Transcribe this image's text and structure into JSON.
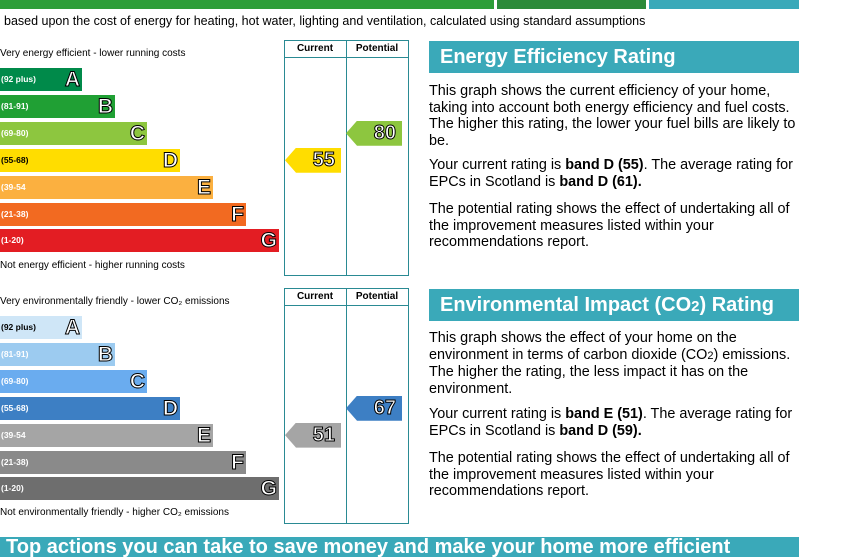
{
  "subtitle": "based upon the cost of energy for heating, hot water, lighting and ventilation, calculated using standard assumptions",
  "top_bar_colors": [
    "#2e9e39",
    "#2c8a3a",
    "#3aa9b9"
  ],
  "energy": {
    "top_note": "Very energy efficient - lower running costs",
    "bottom_note": "Not energy efficient - higher running costs",
    "col_current": "Current",
    "col_potential": "Potential",
    "bands": [
      {
        "range": "(92 plus)",
        "letter": "A",
        "color": "#008a4a"
      },
      {
        "range": "(81-91)",
        "letter": "B",
        "color": "#20a034"
      },
      {
        "range": "(69-80)",
        "letter": "C",
        "color": "#8dc63f"
      },
      {
        "range": "(55-68)",
        "letter": "D",
        "color": "#ffdd00"
      },
      {
        "range": "(39-54",
        "letter": "E",
        "color": "#fbb040"
      },
      {
        "range": "(21-38)",
        "letter": "F",
        "color": "#f26a21"
      },
      {
        "range": "(1-20)",
        "letter": "G",
        "color": "#e31d23"
      }
    ],
    "current": {
      "value": "55",
      "band": "D",
      "color": "#ffdd00"
    },
    "potential": {
      "value": "80",
      "band": "C",
      "color": "#8dc63f"
    }
  },
  "environment": {
    "top_note": "Very environmentally friendly - lower CO₂ emissions",
    "bottom_note": "Not environmentally friendly - higher CO₂ emissions",
    "col_current": "Current",
    "col_potential": "Potential",
    "bands": [
      {
        "range": "(92 plus)",
        "letter": "A",
        "color": "#cfe6f7"
      },
      {
        "range": "(81-91)",
        "letter": "B",
        "color": "#9ccbf0"
      },
      {
        "range": "(69-80)",
        "letter": "C",
        "color": "#6aacef"
      },
      {
        "range": "(55-68)",
        "letter": "D",
        "color": "#3d7fc4"
      },
      {
        "range": "(39-54",
        "letter": "E",
        "color": "#a5a5a5"
      },
      {
        "range": "(21-38)",
        "letter": "F",
        "color": "#8a8a8a"
      },
      {
        "range": "(1-20)",
        "letter": "G",
        "color": "#6e6e6e"
      }
    ],
    "current": {
      "value": "51",
      "band": "E",
      "color": "#a5a5a5"
    },
    "potential": {
      "value": "67",
      "band": "D",
      "color": "#3d7fc4"
    }
  },
  "eer_panel": {
    "heading": "Energy Efficiency Rating",
    "p1": "This graph shows the current efficiency of your home, taking into account both energy efficiency and fuel costs. The higher this rating, the lower your fuel bills are likely to be.",
    "p2_pre": "Your current rating is ",
    "p2_b1": "band D (55)",
    "p2_mid": ". The average rating for EPCs in Scotland is ",
    "p2_b2": "band D (61).",
    "p3": "The potential rating shows the effect of undertaking all of the improvement measures listed within your recommendations report."
  },
  "eir_panel": {
    "heading_pre": "Environmental Impact (CO",
    "heading_sub": "2",
    "heading_post": ") Rating",
    "p1_pre": "This graph shows the effect of your home on the environment in terms of carbon dioxide (CO",
    "p1_sub": "2",
    "p1_post": ") emissions. The higher the rating, the less impact it has on the environment.",
    "p2_pre": "Your current rating is ",
    "p2_b1": "band E (51)",
    "p2_mid": ". The average rating for EPCs in Scotland is ",
    "p2_b2": "band D (59).",
    "p3": "The potential rating shows the effect of undertaking all of the improvement measures listed within your recommendations report."
  },
  "bottom_heading": "Top actions you can take to save money and make your home more efficient"
}
